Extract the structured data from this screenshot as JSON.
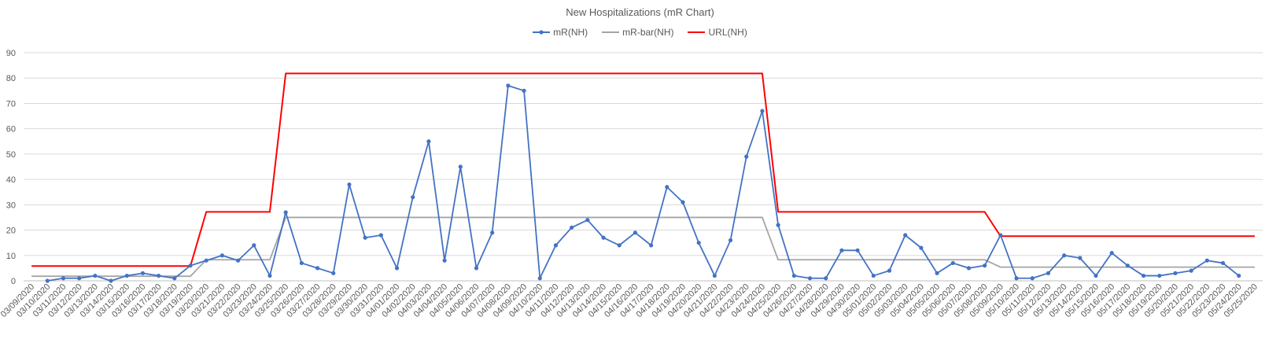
{
  "chart_data": {
    "type": "line",
    "title": "New Hospitalizations  (mR Chart)",
    "xlabel": "",
    "ylabel": "",
    "ylim": [
      0,
      90
    ],
    "yticks": [
      0,
      10,
      20,
      30,
      40,
      50,
      60,
      70,
      80,
      90
    ],
    "grid": true,
    "legend_position": "top",
    "x": [
      "03/09/2020",
      "03/10/2020",
      "03/11/2020",
      "03/12/2020",
      "03/13/2020",
      "03/14/2020",
      "03/15/2020",
      "03/16/2020",
      "03/17/2020",
      "03/18/2020",
      "03/19/2020",
      "03/20/2020",
      "03/21/2020",
      "03/22/2020",
      "03/23/2020",
      "03/24/2020",
      "03/25/2020",
      "03/26/2020",
      "03/27/2020",
      "03/28/2020",
      "03/29/2020",
      "03/30/2020",
      "03/31/2020",
      "04/01/2020",
      "04/02/2020",
      "04/03/2020",
      "04/04/2020",
      "04/05/2020",
      "04/06/2020",
      "04/07/2020",
      "04/08/2020",
      "04/09/2020",
      "04/10/2020",
      "04/11/2020",
      "04/12/2020",
      "04/13/2020",
      "04/14/2020",
      "04/15/2020",
      "04/16/2020",
      "04/17/2020",
      "04/18/2020",
      "04/19/2020",
      "04/20/2020",
      "04/21/2020",
      "04/22/2020",
      "04/23/2020",
      "04/24/2020",
      "04/25/2020",
      "04/26/2020",
      "04/27/2020",
      "04/28/2020",
      "04/29/2020",
      "04/30/2020",
      "05/01/2020",
      "05/02/2020",
      "05/03/2020",
      "05/04/2020",
      "05/05/2020",
      "05/06/2020",
      "05/07/2020",
      "05/08/2020",
      "05/09/2020",
      "05/10/2020",
      "05/11/2020",
      "05/12/2020",
      "05/13/2020",
      "05/14/2020",
      "05/15/2020",
      "05/16/2020",
      "05/17/2020",
      "05/18/2020",
      "05/19/2020",
      "05/20/2020",
      "05/21/2020",
      "05/22/2020",
      "05/23/2020",
      "05/24/2020",
      "05/25/2020"
    ],
    "series": [
      {
        "name": "mR(NH)",
        "color": "#4472c4",
        "markers": true,
        "values": [
          null,
          0,
          1,
          1,
          2,
          0,
          2,
          3,
          2,
          1,
          6,
          8,
          10,
          8,
          14,
          2,
          27,
          7,
          5,
          3,
          38,
          17,
          18,
          5,
          33,
          55,
          8,
          45,
          5,
          19,
          77,
          75,
          1,
          14,
          21,
          24,
          17,
          14,
          19,
          14,
          37,
          31,
          15,
          2,
          16,
          49,
          67,
          22,
          2,
          1,
          1,
          12,
          12,
          2,
          4,
          18,
          13,
          3,
          7,
          5,
          6,
          18,
          1,
          1,
          3,
          10,
          9,
          2,
          11,
          6,
          2,
          2,
          3,
          4,
          8,
          7,
          2,
          null
        ]
      },
      {
        "name": "mR-bar(NH)",
        "color": "#a5a5a5",
        "markers": false,
        "values": [
          1.8,
          1.8,
          1.8,
          1.8,
          1.8,
          1.8,
          1.8,
          1.8,
          1.8,
          1.8,
          1.8,
          8.3,
          8.3,
          8.3,
          8.3,
          8.3,
          25,
          25,
          25,
          25,
          25,
          25,
          25,
          25,
          25,
          25,
          25,
          25,
          25,
          25,
          25,
          25,
          25,
          25,
          25,
          25,
          25,
          25,
          25,
          25,
          25,
          25,
          25,
          25,
          25,
          25,
          25,
          8.3,
          8.3,
          8.3,
          8.3,
          8.3,
          8.3,
          8.3,
          8.3,
          8.3,
          8.3,
          8.3,
          8.3,
          8.3,
          8.3,
          5.4,
          5.4,
          5.4,
          5.4,
          5.4,
          5.4,
          5.4,
          5.4,
          5.4,
          5.4,
          5.4,
          5.4,
          5.4,
          5.4,
          5.4,
          5.4,
          5.4
        ]
      },
      {
        "name": "URL(NH)",
        "color": "#ff0000",
        "markers": false,
        "values": [
          5.8,
          5.8,
          5.8,
          5.8,
          5.8,
          5.8,
          5.8,
          5.8,
          5.8,
          5.8,
          5.8,
          27.2,
          27.2,
          27.2,
          27.2,
          27.2,
          81.8,
          81.8,
          81.8,
          81.8,
          81.8,
          81.8,
          81.8,
          81.8,
          81.8,
          81.8,
          81.8,
          81.8,
          81.8,
          81.8,
          81.8,
          81.8,
          81.8,
          81.8,
          81.8,
          81.8,
          81.8,
          81.8,
          81.8,
          81.8,
          81.8,
          81.8,
          81.8,
          81.8,
          81.8,
          81.8,
          81.8,
          27.2,
          27.2,
          27.2,
          27.2,
          27.2,
          27.2,
          27.2,
          27.2,
          27.2,
          27.2,
          27.2,
          27.2,
          27.2,
          27.2,
          17.6,
          17.6,
          17.6,
          17.6,
          17.6,
          17.6,
          17.6,
          17.6,
          17.6,
          17.6,
          17.6,
          17.6,
          17.6,
          17.6,
          17.6,
          17.6,
          17.6
        ]
      }
    ]
  }
}
